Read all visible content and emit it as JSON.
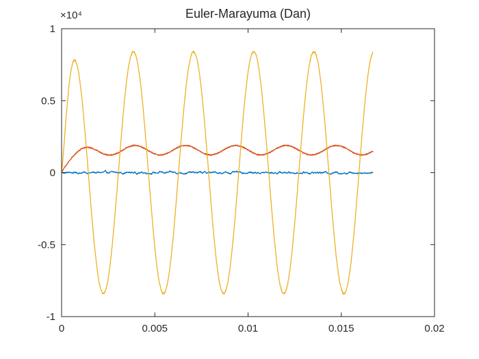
{
  "chart_data": {
    "type": "line",
    "title": "Euler-Marayuma (Dan)",
    "xlabel": "",
    "ylabel": "",
    "xlim": [
      0,
      0.02
    ],
    "ylim": [
      -10000,
      10000
    ],
    "x_ticks": [
      0,
      0.005,
      0.01,
      0.015,
      0.02
    ],
    "x_tick_labels": [
      "0",
      "0.005",
      "0.01",
      "0.015",
      "0.02"
    ],
    "y_ticks": [
      -10000,
      -5000,
      0,
      5000,
      10000
    ],
    "y_tick_labels": [
      "-1",
      "-0.5",
      "0",
      "0.5",
      "1"
    ],
    "y_exponent_label": "×10⁴",
    "grid": false,
    "legend": null,
    "axis_color": "#262626",
    "background": "#ffffff",
    "series": [
      {
        "name": "series-1-blue",
        "color": "#0072BD",
        "kind": "noisy-flat",
        "mean": 0,
        "noise_amp": 150,
        "x_end": 0.0167
      },
      {
        "name": "series-2-orange",
        "color": "#D95319",
        "kind": "risen-ripple",
        "base": 1560,
        "ripple_amp": 330,
        "frequency_hz": 370,
        "phase": -1.3,
        "rise_tau": 0.0005,
        "noise_amp": 40,
        "x_end": 0.0167
      },
      {
        "name": "series-3-yellow",
        "color": "#EDB120",
        "kind": "sine",
        "amplitude": 8400,
        "frequency_hz": 310,
        "phase": 0.35,
        "rise_tau": 0.00025,
        "noise_amp": 60,
        "x_end": 0.0167
      }
    ]
  }
}
